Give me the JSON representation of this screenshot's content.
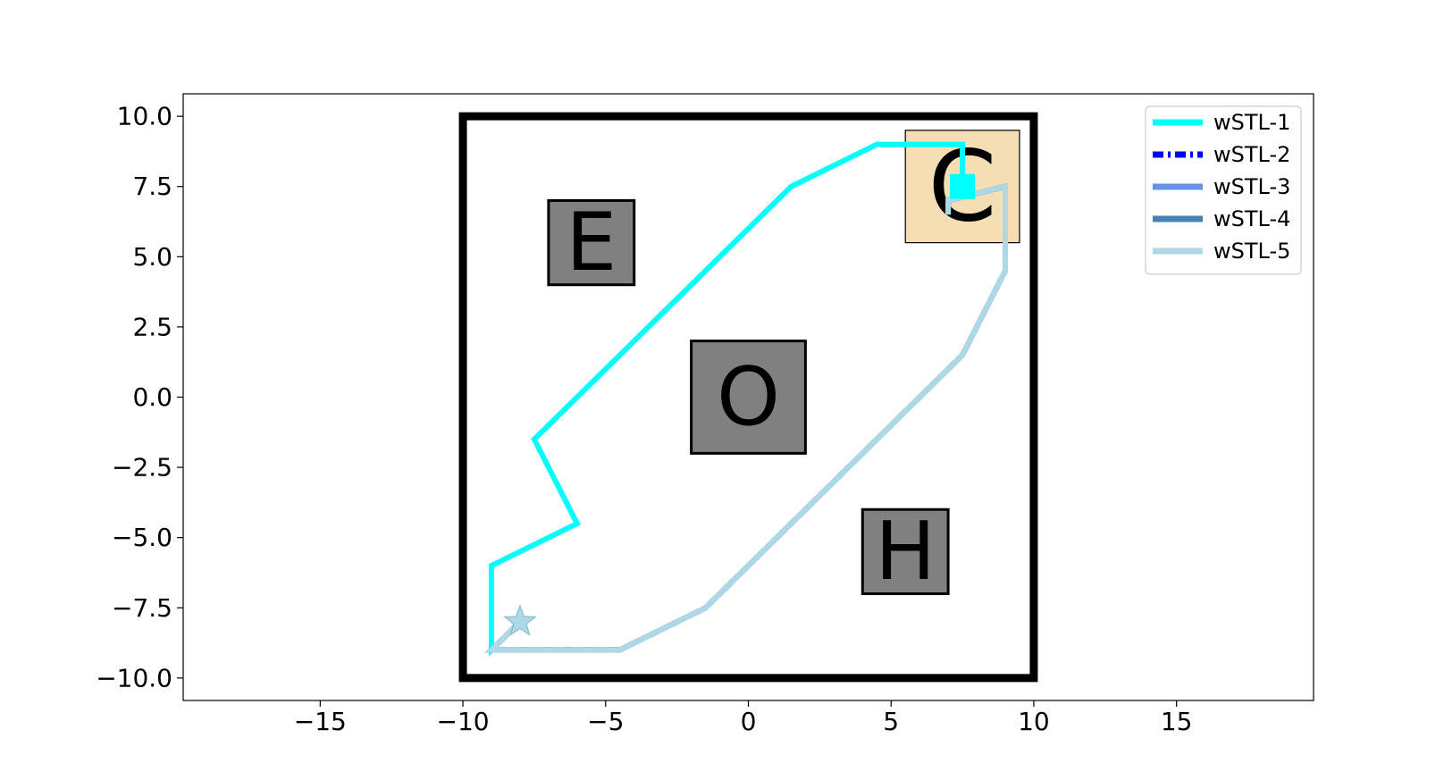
{
  "chart_data": {
    "type": "line",
    "title": "",
    "xlabel": "",
    "ylabel": "",
    "xlim": [
      -19.8,
      19.8
    ],
    "ylim": [
      -10.8,
      10.8
    ],
    "xticks": [
      -15,
      -10,
      -5,
      0,
      5,
      10,
      15
    ],
    "yticks": [
      -10.0,
      -7.5,
      -5.0,
      -2.5,
      0.0,
      2.5,
      5.0,
      7.5,
      10.0
    ],
    "xtick_labels": [
      "−15",
      "−10",
      "−5",
      "0",
      "5",
      "10",
      "15"
    ],
    "ytick_labels": [
      "−10.0",
      "−7.5",
      "−5.0",
      "−2.5",
      "0.0",
      "2.5",
      "5.0",
      "7.5",
      "10.0"
    ],
    "grid": false,
    "legend_position": "top-right",
    "boundary": {
      "x": [
        -10,
        10
      ],
      "y": [
        -10,
        10
      ],
      "color": "#000000"
    },
    "regions": [
      {
        "label": "E",
        "x": [
          -7,
          -4
        ],
        "y": [
          4,
          7
        ],
        "fill": "#808080"
      },
      {
        "label": "O",
        "x": [
          -2,
          2
        ],
        "y": [
          -2,
          2
        ],
        "fill": "#808080"
      },
      {
        "label": "H",
        "x": [
          4,
          7
        ],
        "y": [
          -7,
          -4
        ],
        "fill": "#808080"
      },
      {
        "label": "C",
        "x": [
          5.5,
          9.5
        ],
        "y": [
          5.5,
          9.5
        ],
        "fill": "#f5deb3"
      }
    ],
    "start_marker": {
      "symbol": "star",
      "x": -8,
      "y": -8,
      "color": "#add8e6"
    },
    "end_marker": {
      "symbol": "square",
      "x": 7.5,
      "y": 7.5,
      "color": "#00ffff"
    },
    "series": [
      {
        "name": "wSTL-1",
        "color": "#00ffff",
        "style": "solid",
        "x": [
          -8,
          -9,
          -9,
          -6,
          -7.5,
          1.5,
          4.5,
          7.5,
          7.5
        ],
        "y": [
          -8,
          -9,
          -6,
          -4.5,
          -1.5,
          7.5,
          9,
          9,
          7.5
        ]
      },
      {
        "name": "wSTL-2",
        "color": "#0000ff",
        "style": "dashdot",
        "x": [
          -8,
          -9,
          -4.5,
          -1.5,
          7.5,
          9,
          9,
          7,
          7
        ],
        "y": [
          -8,
          -9,
          -9,
          -7.5,
          1.5,
          4.5,
          7.5,
          7,
          6.5
        ]
      },
      {
        "name": "wSTL-3",
        "color": "#6495ed",
        "style": "solid",
        "x": [
          -8,
          -9,
          -4.5,
          -1.5,
          7.5,
          9,
          9,
          7,
          7
        ],
        "y": [
          -8,
          -9,
          -9,
          -7.5,
          1.5,
          4.5,
          7.5,
          7,
          6.5
        ]
      },
      {
        "name": "wSTL-4",
        "color": "#4682b4",
        "style": "solid",
        "x": [
          -8,
          -9,
          -4.5,
          -1.5,
          7.5,
          9,
          9,
          7,
          7
        ],
        "y": [
          -8,
          -9,
          -9,
          -7.5,
          1.5,
          4.5,
          7.5,
          7,
          6.5
        ]
      },
      {
        "name": "wSTL-5",
        "color": "#add8e6",
        "style": "solid",
        "x": [
          -8,
          -9,
          -4.5,
          -1.5,
          7.5,
          9,
          9,
          7,
          7
        ],
        "y": [
          -8,
          -9,
          -9,
          -7.5,
          1.5,
          4.5,
          7.5,
          7,
          6.5
        ]
      }
    ]
  }
}
